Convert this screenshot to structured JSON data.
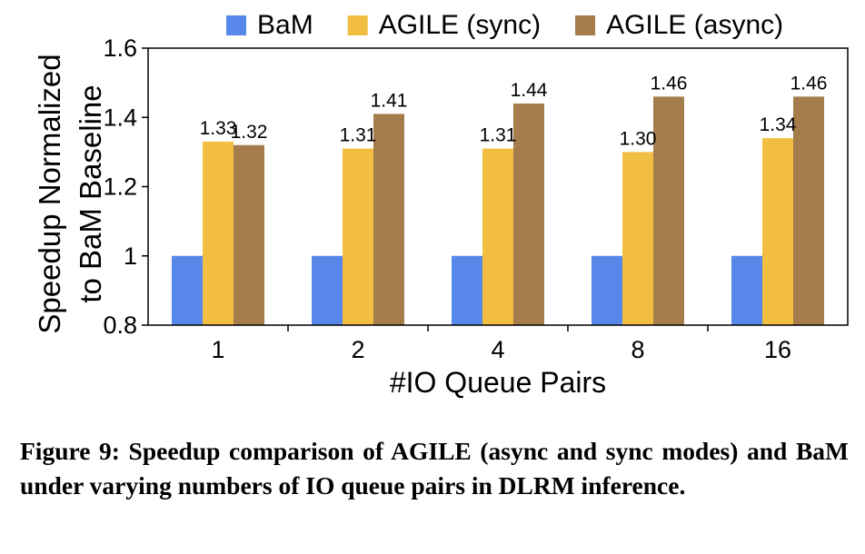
{
  "chart_data": {
    "type": "bar",
    "xlabel": "#IO Queue Pairs",
    "ylabel_lines": [
      "Speedup Normalized",
      "to BaM Baseline"
    ],
    "ylim": [
      0.8,
      1.6
    ],
    "yticks": [
      0.8,
      1.0,
      1.2,
      1.4,
      1.6
    ],
    "ytick_labels": [
      "0.8",
      "1",
      "1.2",
      "1.4",
      "1.6"
    ],
    "categories": [
      "1",
      "2",
      "4",
      "8",
      "16"
    ],
    "legend_position": "top",
    "grid": false,
    "series": [
      {
        "name": "BaM",
        "color": "#5787E8",
        "values": [
          1,
          1,
          1,
          1,
          1
        ],
        "value_labels": [
          "",
          "",
          "",
          "",
          ""
        ]
      },
      {
        "name": "AGILE (sync)",
        "color": "#F2BE42",
        "values": [
          1.33,
          1.31,
          1.31,
          1.3,
          1.34
        ],
        "value_labels": [
          "1.33",
          "1.31",
          "1.31",
          "1.30",
          "1.34"
        ]
      },
      {
        "name": "AGILE (async)",
        "color": "#A57C4C",
        "values": [
          1.32,
          1.41,
          1.44,
          1.46,
          1.46
        ],
        "value_labels": [
          "1.32",
          "1.41",
          "1.44",
          "1.46",
          "1.46"
        ]
      }
    ]
  },
  "caption": "Figure 9: Speedup comparison of AGILE (async and sync modes) and BaM under varying numbers of IO queue pairs in DLRM inference."
}
